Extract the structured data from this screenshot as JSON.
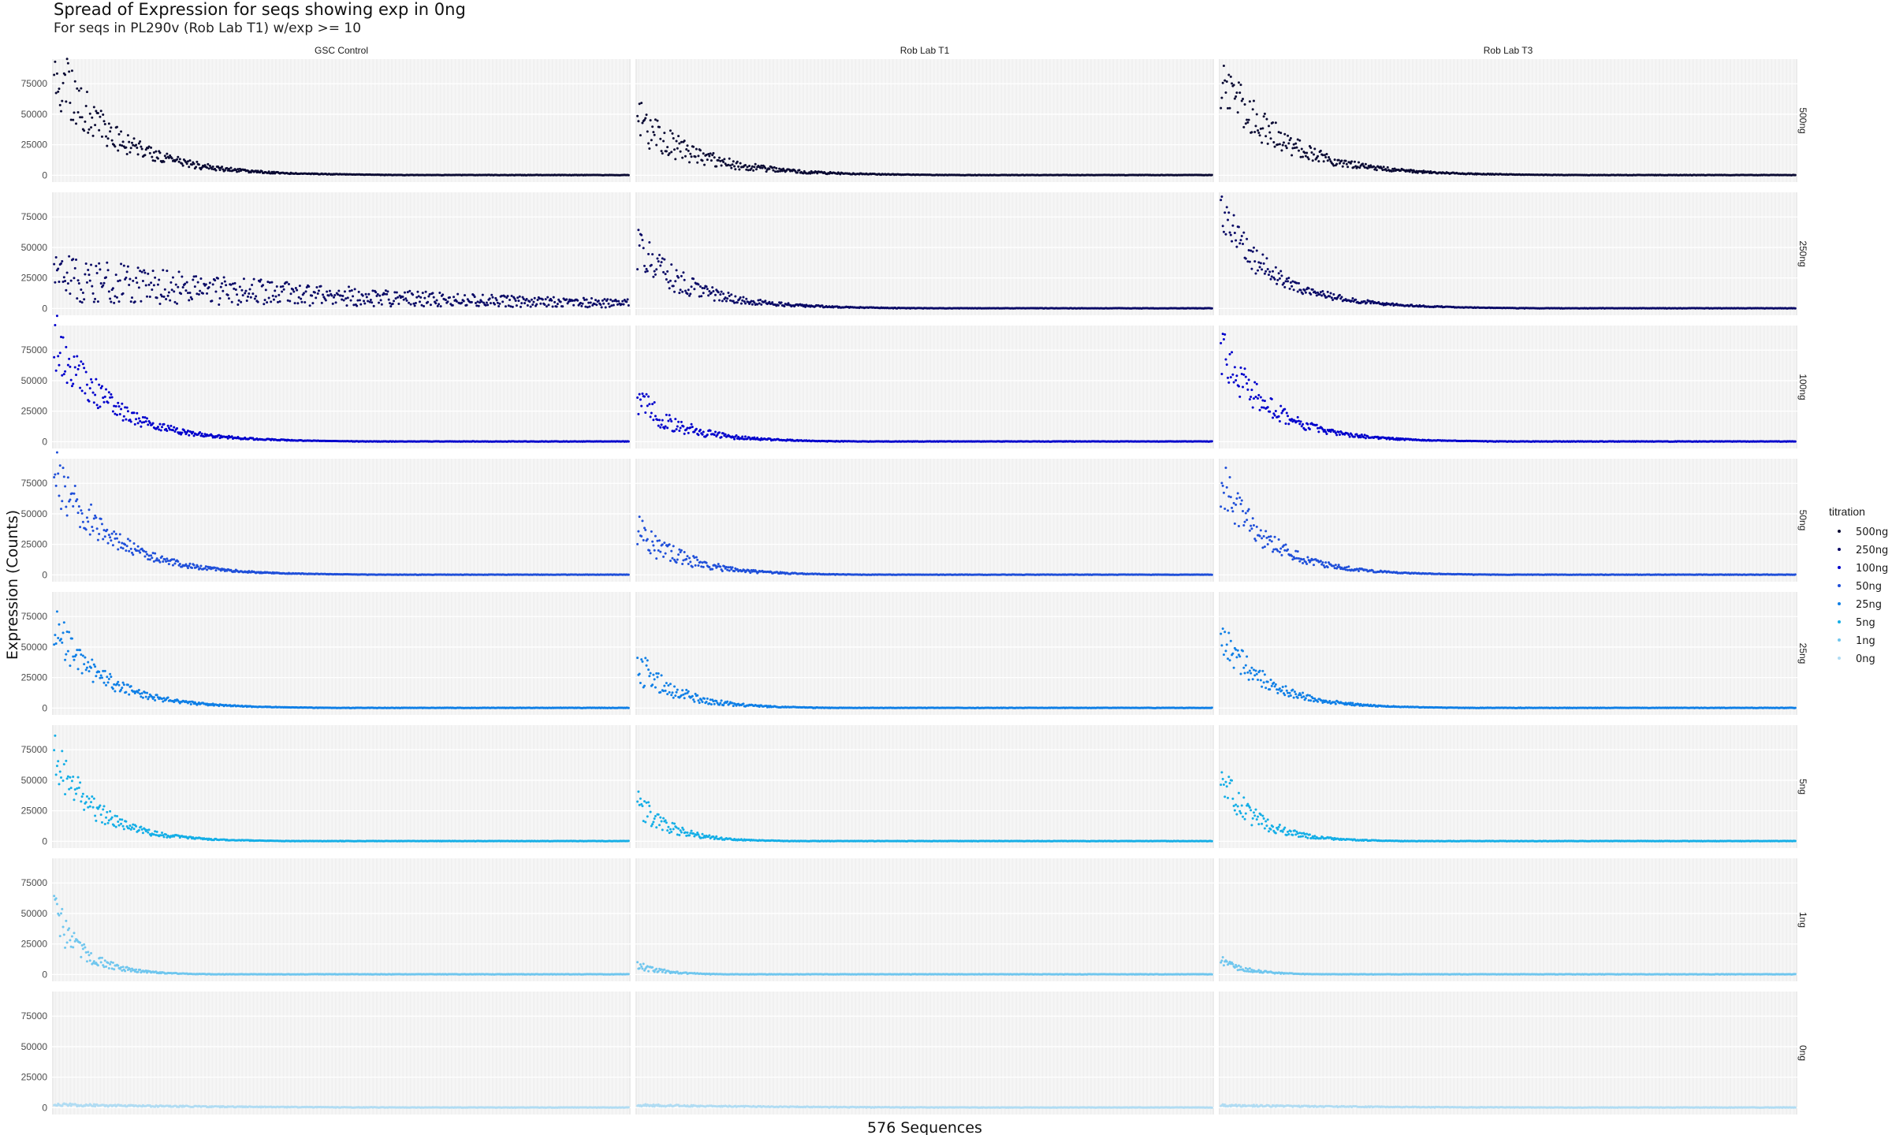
{
  "chart_data": {
    "type": "scatter",
    "title": "Spread of Expression for seqs showing exp in 0ng",
    "subtitle": "For seqs in PL290v (Rob Lab T1) w/exp >= 10",
    "xlabel": "576 Sequences",
    "ylabel": "Expression (Counts)",
    "x_count": 576,
    "ylim": [
      -3000,
      90000
    ],
    "y_ticks": [
      0,
      25000,
      50000,
      75000
    ],
    "y_tick_labels": [
      "0",
      "25000",
      "50000",
      "75000"
    ],
    "columns": [
      "GSC Control",
      "Rob Lab T1",
      "Rob Lab T3"
    ],
    "rows": [
      "500ng",
      "250ng",
      "100ng",
      "50ng",
      "25ng",
      "5ng",
      "1ng",
      "0ng"
    ],
    "legend": {
      "title": "titration",
      "position": "right",
      "items": [
        {
          "label": "500ng",
          "color": "#0a0a33"
        },
        {
          "label": "250ng",
          "color": "#0a0a66"
        },
        {
          "label": "100ng",
          "color": "#0000cc"
        },
        {
          "label": "50ng",
          "color": "#1f4fd9"
        },
        {
          "label": "25ng",
          "color": "#0f7fe6"
        },
        {
          "label": "5ng",
          "color": "#14aee6"
        },
        {
          "label": "1ng",
          "color": "#6fc6ee"
        },
        {
          "label": "0ng",
          "color": "#b0dcf3"
        }
      ]
    },
    "panel_profiles": {
      "GSC Control": {
        "500ng": {
          "peak": 88000,
          "decay": 60,
          "noise": 0.35
        },
        "250ng": {
          "peak": 25000,
          "decay": 320,
          "noise": 0.8
        },
        "100ng": {
          "peak": 85000,
          "decay": 55,
          "noise": 0.3
        },
        "50ng": {
          "peak": 87000,
          "decay": 55,
          "noise": 0.3
        },
        "25ng": {
          "peak": 66000,
          "decay": 50,
          "noise": 0.3
        },
        "5ng": {
          "peak": 70000,
          "decay": 42,
          "noise": 0.35
        },
        "1ng": {
          "peak": 50000,
          "decay": 30,
          "noise": 0.4
        },
        "0ng": {
          "peak": 2500,
          "decay": 150,
          "noise": 0.5
        }
      },
      "Rob Lab T1": {
        "500ng": {
          "peak": 45000,
          "decay": 60,
          "noise": 0.45
        },
        "250ng": {
          "peak": 47000,
          "decay": 55,
          "noise": 0.45
        },
        "100ng": {
          "peak": 33000,
          "decay": 45,
          "noise": 0.45
        },
        "50ng": {
          "peak": 37000,
          "decay": 45,
          "noise": 0.45
        },
        "25ng": {
          "peak": 35000,
          "decay": 40,
          "noise": 0.45
        },
        "5ng": {
          "peak": 32000,
          "decay": 32,
          "noise": 0.45
        },
        "1ng": {
          "peak": 8000,
          "decay": 25,
          "noise": 0.5
        },
        "0ng": {
          "peak": 2000,
          "decay": 150,
          "noise": 0.5
        }
      },
      "Rob Lab T3": {
        "500ng": {
          "peak": 80000,
          "decay": 60,
          "noise": 0.35
        },
        "250ng": {
          "peak": 75000,
          "decay": 55,
          "noise": 0.3
        },
        "100ng": {
          "peak": 75000,
          "decay": 50,
          "noise": 0.3
        },
        "50ng": {
          "peak": 75000,
          "decay": 48,
          "noise": 0.3
        },
        "25ng": {
          "peak": 60000,
          "decay": 45,
          "noise": 0.3
        },
        "5ng": {
          "peak": 52000,
          "decay": 35,
          "noise": 0.4
        },
        "1ng": {
          "peak": 12000,
          "decay": 25,
          "noise": 0.45
        },
        "0ng": {
          "peak": 2000,
          "decay": 150,
          "noise": 0.5
        }
      }
    },
    "grid": true
  }
}
